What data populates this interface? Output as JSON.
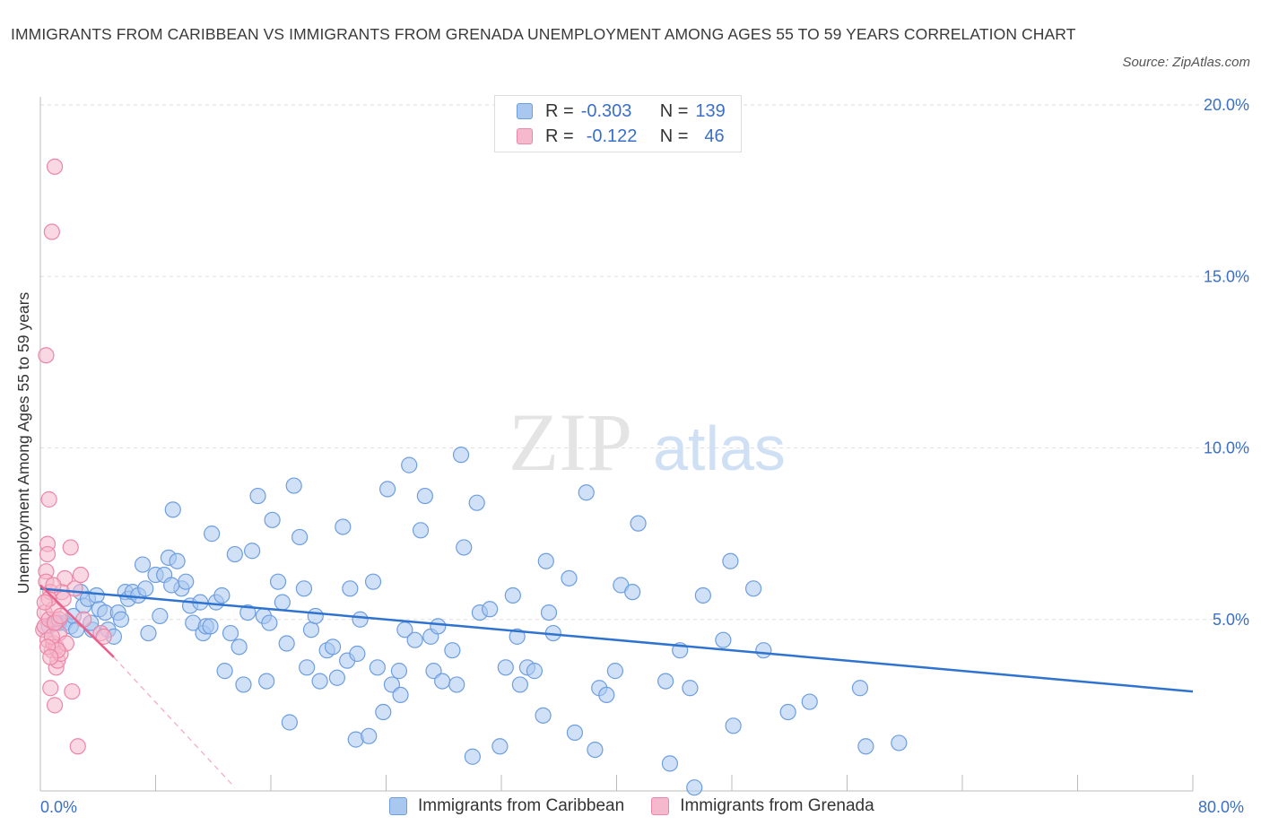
{
  "title": "IMMIGRANTS FROM CARIBBEAN VS IMMIGRANTS FROM GRENADA UNEMPLOYMENT AMONG AGES 55 TO 59 YEARS CORRELATION CHART",
  "source": "Source: ZipAtlas.com",
  "watermark": {
    "zip": "ZIP",
    "atlas": "atlas"
  },
  "legend_top": {
    "rows": [
      {
        "r_label": "R =",
        "r_value": "-0.303",
        "n_label": "N =",
        "n_value": "139"
      },
      {
        "r_label": "R =",
        "r_value": "-0.122",
        "n_label": "N =",
        "n_value": "46"
      }
    ]
  },
  "colors": {
    "caribbean_fill": "#a9c8f0",
    "caribbean_stroke": "#6d9ee0",
    "caribbean_line": "#2f73d0",
    "grenada_fill": "#f6b8cc",
    "grenada_stroke": "#ec86a6",
    "grenada_line": "#e8608c",
    "axis_text": "#3a6fc9",
    "grid": "#dedede"
  },
  "chart_data": {
    "type": "scatter",
    "title": "IMMIGRANTS FROM CARIBBEAN VS IMMIGRANTS FROM GRENADA UNEMPLOYMENT AMONG AGES 55 TO 59 YEARS CORRELATION CHART",
    "xlabel": "",
    "ylabel": "Unemployment Among Ages 55 to 59 years",
    "xlim": [
      0,
      80
    ],
    "ylim": [
      0,
      20
    ],
    "x_tick_labels": [
      "0.0%",
      "80.0%"
    ],
    "y_ticks": [
      5,
      10,
      15,
      20
    ],
    "y_tick_labels": [
      "5.0%",
      "10.0%",
      "15.0%",
      "20.0%"
    ],
    "grid": "horizontal dashed",
    "legend_position": "bottom",
    "series": [
      {
        "name": "Immigrants from Caribbean",
        "trend": {
          "x": [
            0,
            80
          ],
          "y": [
            5.9,
            2.9
          ]
        },
        "points": [
          [
            0.6,
            4.8
          ],
          [
            0.9,
            4.9
          ],
          [
            1.3,
            4.9
          ],
          [
            1.7,
            4.9
          ],
          [
            2.1,
            4.8
          ],
          [
            2.3,
            5.1
          ],
          [
            2.5,
            4.7
          ],
          [
            2.8,
            5.8
          ],
          [
            3.0,
            5.4
          ],
          [
            3.3,
            5.6
          ],
          [
            3.6,
            4.7
          ],
          [
            3.9,
            5.7
          ],
          [
            4.1,
            5.3
          ],
          [
            4.5,
            5.2
          ],
          [
            4.7,
            4.7
          ],
          [
            5.1,
            4.5
          ],
          [
            5.4,
            5.2
          ],
          [
            5.6,
            5.0
          ],
          [
            5.9,
            5.8
          ],
          [
            6.1,
            5.6
          ],
          [
            6.4,
            5.8
          ],
          [
            6.8,
            5.7
          ],
          [
            7.1,
            6.6
          ],
          [
            7.3,
            5.9
          ],
          [
            7.5,
            4.6
          ],
          [
            8.0,
            6.3
          ],
          [
            8.3,
            5.1
          ],
          [
            8.6,
            6.3
          ],
          [
            8.9,
            6.8
          ],
          [
            9.2,
            8.2
          ],
          [
            9.5,
            6.7
          ],
          [
            9.8,
            5.9
          ],
          [
            10.1,
            6.1
          ],
          [
            10.4,
            5.4
          ],
          [
            10.6,
            4.9
          ],
          [
            11.1,
            5.5
          ],
          [
            11.3,
            4.6
          ],
          [
            11.5,
            4.8
          ],
          [
            11.9,
            7.5
          ],
          [
            12.2,
            5.5
          ],
          [
            12.6,
            5.7
          ],
          [
            12.8,
            3.5
          ],
          [
            13.2,
            4.6
          ],
          [
            13.5,
            6.9
          ],
          [
            13.8,
            4.2
          ],
          [
            14.1,
            3.1
          ],
          [
            14.4,
            5.2
          ],
          [
            14.7,
            7.0
          ],
          [
            15.1,
            8.6
          ],
          [
            15.5,
            5.1
          ],
          [
            15.7,
            3.2
          ],
          [
            15.9,
            4.9
          ],
          [
            16.1,
            7.9
          ],
          [
            16.5,
            6.1
          ],
          [
            16.8,
            5.5
          ],
          [
            17.1,
            4.3
          ],
          [
            17.3,
            2.0
          ],
          [
            17.6,
            8.9
          ],
          [
            18.0,
            7.4
          ],
          [
            18.3,
            5.9
          ],
          [
            18.5,
            3.6
          ],
          [
            18.8,
            4.7
          ],
          [
            19.1,
            5.1
          ],
          [
            19.4,
            3.2
          ],
          [
            19.9,
            4.1
          ],
          [
            20.3,
            4.2
          ],
          [
            20.6,
            3.3
          ],
          [
            21.0,
            7.7
          ],
          [
            21.3,
            3.8
          ],
          [
            21.5,
            5.9
          ],
          [
            21.9,
            1.5
          ],
          [
            22.2,
            5.0
          ],
          [
            22.8,
            1.6
          ],
          [
            23.1,
            6.1
          ],
          [
            23.4,
            3.6
          ],
          [
            23.8,
            2.3
          ],
          [
            24.1,
            8.8
          ],
          [
            24.4,
            3.1
          ],
          [
            24.9,
            3.5
          ],
          [
            25.3,
            4.7
          ],
          [
            25.6,
            9.5
          ],
          [
            26.0,
            4.4
          ],
          [
            26.4,
            7.6
          ],
          [
            26.7,
            8.6
          ],
          [
            27.1,
            4.5
          ],
          [
            27.3,
            3.5
          ],
          [
            27.6,
            4.8
          ],
          [
            27.9,
            3.2
          ],
          [
            28.6,
            4.1
          ],
          [
            28.9,
            3.1
          ],
          [
            29.2,
            9.8
          ],
          [
            29.4,
            7.1
          ],
          [
            30.0,
            1.0
          ],
          [
            30.3,
            8.4
          ],
          [
            30.5,
            5.2
          ],
          [
            31.2,
            5.3
          ],
          [
            31.9,
            1.3
          ],
          [
            32.3,
            3.6
          ],
          [
            32.8,
            5.7
          ],
          [
            33.1,
            4.5
          ],
          [
            33.3,
            3.1
          ],
          [
            33.8,
            3.6
          ],
          [
            34.3,
            3.5
          ],
          [
            34.9,
            2.2
          ],
          [
            35.1,
            6.7
          ],
          [
            35.3,
            5.2
          ],
          [
            35.6,
            4.6
          ],
          [
            36.7,
            6.2
          ],
          [
            37.1,
            1.7
          ],
          [
            37.9,
            8.7
          ],
          [
            38.5,
            1.2
          ],
          [
            38.8,
            3.0
          ],
          [
            39.3,
            2.8
          ],
          [
            39.9,
            3.5
          ],
          [
            40.3,
            6.0
          ],
          [
            41.1,
            5.8
          ],
          [
            41.5,
            7.8
          ],
          [
            43.4,
            3.2
          ],
          [
            43.7,
            0.8
          ],
          [
            44.4,
            4.1
          ],
          [
            45.1,
            3.0
          ],
          [
            45.4,
            0.1
          ],
          [
            46.0,
            5.7
          ],
          [
            47.4,
            4.4
          ],
          [
            47.9,
            6.7
          ],
          [
            48.1,
            1.9
          ],
          [
            49.5,
            5.9
          ],
          [
            50.2,
            4.1
          ],
          [
            51.9,
            2.3
          ],
          [
            53.4,
            2.6
          ],
          [
            56.9,
            3.0
          ],
          [
            57.3,
            1.3
          ],
          [
            59.6,
            1.4
          ],
          [
            22.0,
            4.0
          ],
          [
            25.0,
            2.8
          ],
          [
            11.8,
            4.8
          ],
          [
            9.1,
            6.0
          ],
          [
            3.5,
            4.9
          ],
          [
            1.1,
            4.9
          ]
        ]
      },
      {
        "name": "Immigrants from Grenada",
        "trend": {
          "x": [
            0,
            5.1
          ],
          "y": [
            6.0,
            3.9
          ]
        },
        "trend_extension": {
          "x": [
            5.1,
            13.5
          ],
          "y": [
            3.9,
            0.1
          ]
        },
        "points": [
          [
            0.2,
            4.7
          ],
          [
            0.3,
            5.2
          ],
          [
            0.3,
            4.8
          ],
          [
            0.4,
            6.4
          ],
          [
            0.4,
            6.1
          ],
          [
            0.5,
            7.2
          ],
          [
            0.5,
            6.9
          ],
          [
            0.5,
            4.4
          ],
          [
            0.6,
            8.5
          ],
          [
            0.6,
            5.0
          ],
          [
            0.7,
            3.0
          ],
          [
            0.7,
            5.8
          ],
          [
            0.8,
            16.3
          ],
          [
            0.8,
            4.1
          ],
          [
            0.9,
            4.3
          ],
          [
            0.9,
            5.3
          ],
          [
            1.0,
            18.2
          ],
          [
            1.0,
            2.5
          ],
          [
            1.1,
            3.6
          ],
          [
            1.1,
            4.2
          ],
          [
            1.2,
            3.8
          ],
          [
            1.3,
            5.0
          ],
          [
            1.3,
            4.6
          ],
          [
            1.4,
            4.0
          ],
          [
            1.5,
            5.8
          ],
          [
            1.6,
            5.6
          ],
          [
            1.7,
            6.2
          ],
          [
            1.8,
            4.3
          ],
          [
            2.1,
            7.1
          ],
          [
            2.2,
            2.9
          ],
          [
            2.4,
            5.9
          ],
          [
            2.6,
            1.3
          ],
          [
            2.8,
            6.3
          ],
          [
            3.0,
            5.0
          ],
          [
            0.4,
            12.7
          ],
          [
            0.6,
            5.6
          ],
          [
            0.8,
            4.5
          ],
          [
            1.0,
            4.9
          ],
          [
            1.2,
            4.1
          ],
          [
            1.4,
            5.1
          ],
          [
            0.3,
            5.5
          ],
          [
            0.5,
            4.2
          ],
          [
            0.7,
            3.9
          ],
          [
            0.9,
            6.0
          ],
          [
            4.2,
            4.6
          ],
          [
            4.4,
            4.5
          ]
        ]
      }
    ]
  },
  "bottom_legend": [
    {
      "label": "Immigrants from Caribbean"
    },
    {
      "label": "Immigrants from Grenada"
    }
  ]
}
